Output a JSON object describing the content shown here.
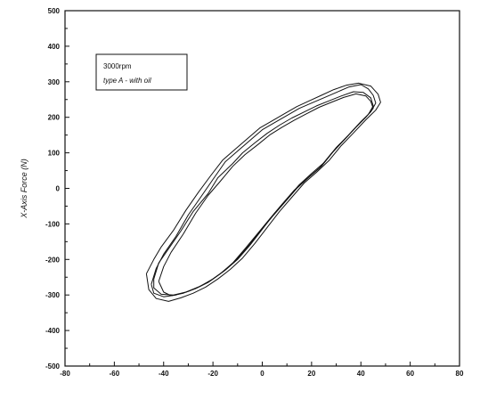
{
  "chart_data": {
    "type": "line",
    "title": "",
    "xlabel": "",
    "ylabel": "X-Axis Force (N)",
    "xlim": [
      -80,
      80
    ],
    "ylim": [
      -500,
      500
    ],
    "x_ticks": [
      -80,
      -60,
      -40,
      -20,
      0,
      20,
      40,
      60,
      80
    ],
    "y_ticks": [
      -500,
      -400,
      -300,
      -200,
      -100,
      0,
      100,
      200,
      300,
      400,
      500
    ],
    "grid": false,
    "legend": {
      "placement": "top-left",
      "entries": [
        "3000rpm",
        "type A - with oil"
      ]
    },
    "series": [
      {
        "points": [
          [
            -45,
            -270
          ],
          [
            -43,
            -225
          ],
          [
            -40,
            -185
          ],
          [
            -35,
            -135
          ],
          [
            -30,
            -75
          ],
          [
            -25,
            -25
          ],
          [
            -20,
            25
          ],
          [
            -15,
            75
          ],
          [
            -10,
            105
          ],
          [
            -5,
            135
          ],
          [
            0,
            165
          ],
          [
            5,
            185
          ],
          [
            10,
            205
          ],
          [
            15,
            225
          ],
          [
            20,
            240
          ],
          [
            25,
            255
          ],
          [
            30,
            270
          ],
          [
            35,
            285
          ],
          [
            40,
            292
          ],
          [
            43,
            280
          ],
          [
            45,
            262
          ],
          [
            46,
            240
          ],
          [
            44,
            215
          ],
          [
            40,
            188
          ],
          [
            35,
            150
          ],
          [
            30,
            115
          ],
          [
            25,
            72
          ],
          [
            20,
            42
          ],
          [
            15,
            10
          ],
          [
            10,
            -30
          ],
          [
            5,
            -70
          ],
          [
            0,
            -115
          ],
          [
            -5,
            -160
          ],
          [
            -10,
            -200
          ],
          [
            -15,
            -230
          ],
          [
            -20,
            -255
          ],
          [
            -25,
            -275
          ],
          [
            -30,
            -290
          ],
          [
            -35,
            -300
          ],
          [
            -40,
            -305
          ],
          [
            -44,
            -295
          ],
          [
            -45,
            -270
          ]
        ]
      },
      {
        "points": [
          [
            -44,
            -255
          ],
          [
            -42,
            -210
          ],
          [
            -38,
            -170
          ],
          [
            -33,
            -120
          ],
          [
            -28,
            -65
          ],
          [
            -22,
            -15
          ],
          [
            -18,
            30
          ],
          [
            -12,
            70
          ],
          [
            -8,
            100
          ],
          [
            -3,
            128
          ],
          [
            2,
            155
          ],
          [
            7,
            178
          ],
          [
            12,
            198
          ],
          [
            17,
            215
          ],
          [
            22,
            232
          ],
          [
            27,
            246
          ],
          [
            32,
            260
          ],
          [
            37,
            272
          ],
          [
            41,
            270
          ],
          [
            44,
            255
          ],
          [
            45,
            232
          ],
          [
            43,
            208
          ],
          [
            39,
            180
          ],
          [
            34,
            142
          ],
          [
            29,
            105
          ],
          [
            24,
            62
          ],
          [
            19,
            32
          ],
          [
            14,
            0
          ],
          [
            9,
            -40
          ],
          [
            4,
            -80
          ],
          [
            -1,
            -122
          ],
          [
            -6,
            -165
          ],
          [
            -11,
            -205
          ],
          [
            -16,
            -235
          ],
          [
            -21,
            -260
          ],
          [
            -26,
            -278
          ],
          [
            -31,
            -292
          ],
          [
            -36,
            -300
          ],
          [
            -41,
            -298
          ],
          [
            -44,
            -280
          ],
          [
            -44,
            -255
          ]
        ]
      },
      {
        "points": [
          [
            -47,
            -240
          ],
          [
            -44,
            -200
          ],
          [
            -41,
            -165
          ],
          [
            -36,
            -118
          ],
          [
            -31,
            -62
          ],
          [
            -26,
            -12
          ],
          [
            -21,
            35
          ],
          [
            -16,
            80
          ],
          [
            -11,
            110
          ],
          [
            -6,
            140
          ],
          [
            -1,
            170
          ],
          [
            4,
            190
          ],
          [
            9,
            210
          ],
          [
            14,
            230
          ],
          [
            19,
            246
          ],
          [
            24,
            262
          ],
          [
            29,
            278
          ],
          [
            34,
            290
          ],
          [
            39,
            296
          ],
          [
            44,
            288
          ],
          [
            47,
            265
          ],
          [
            48,
            242
          ],
          [
            46,
            220
          ],
          [
            42,
            193
          ],
          [
            37,
            156
          ],
          [
            32,
            120
          ],
          [
            27,
            78
          ],
          [
            22,
            45
          ],
          [
            17,
            15
          ],
          [
            12,
            -25
          ],
          [
            7,
            -65
          ],
          [
            2,
            -110
          ],
          [
            -3,
            -155
          ],
          [
            -8,
            -196
          ],
          [
            -13,
            -228
          ],
          [
            -18,
            -255
          ],
          [
            -23,
            -278
          ],
          [
            -28,
            -295
          ],
          [
            -33,
            -308
          ],
          [
            -38,
            -318
          ],
          [
            -43,
            -310
          ],
          [
            -46,
            -285
          ],
          [
            -47,
            -240
          ]
        ]
      },
      {
        "points": [
          [
            -42,
            -262
          ],
          [
            -40,
            -220
          ],
          [
            -37,
            -180
          ],
          [
            -32,
            -128
          ],
          [
            -27,
            -70
          ],
          [
            -22,
            -20
          ],
          [
            -17,
            20
          ],
          [
            -12,
            62
          ],
          [
            -7,
            95
          ],
          [
            -2,
            122
          ],
          [
            3,
            150
          ],
          [
            8,
            172
          ],
          [
            13,
            192
          ],
          [
            18,
            210
          ],
          [
            23,
            228
          ],
          [
            28,
            242
          ],
          [
            33,
            256
          ],
          [
            38,
            266
          ],
          [
            42,
            260
          ],
          [
            44,
            245
          ],
          [
            45,
            225
          ],
          [
            42,
            200
          ],
          [
            38,
            172
          ],
          [
            33,
            135
          ],
          [
            28,
            98
          ],
          [
            23,
            56
          ],
          [
            18,
            26
          ],
          [
            13,
            -5
          ],
          [
            8,
            -45
          ],
          [
            3,
            -86
          ],
          [
            -2,
            -128
          ],
          [
            -7,
            -170
          ],
          [
            -12,
            -210
          ],
          [
            -17,
            -240
          ],
          [
            -22,
            -265
          ],
          [
            -27,
            -282
          ],
          [
            -32,
            -295
          ],
          [
            -37,
            -302
          ],
          [
            -40,
            -292
          ],
          [
            -42,
            -262
          ]
        ]
      }
    ]
  }
}
